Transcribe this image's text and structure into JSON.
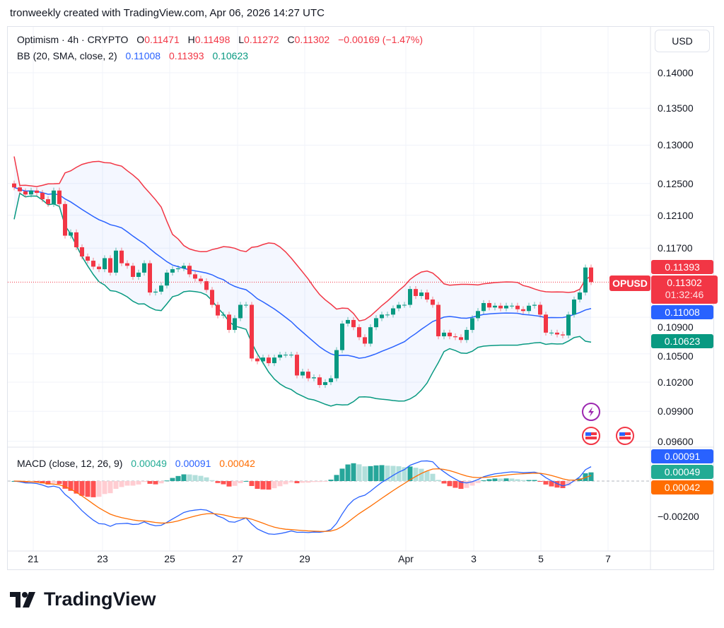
{
  "credit": "tronweekly created with TradingView.com, Apr 06, 2026 14:27 UTC",
  "legend": {
    "symbol": "Optimism · 4h · CRYPTO",
    "o_label": "O",
    "o": "0.11471",
    "h_label": "H",
    "h": "0.11498",
    "l_label": "L",
    "l": "0.11272",
    "c_label": "C",
    "c": "0.11302",
    "change": "−0.00169 (−1.47%)",
    "bb_label": "BB (20, SMA, close, 2)",
    "bb_basis": "0.11008",
    "bb_upper": "0.11393",
    "bb_lower": "0.10623",
    "macd_label": "MACD (close, 12, 26, 9)",
    "macd_hist": "0.00049",
    "macd_line": "0.00091",
    "macd_signal": "0.00042"
  },
  "currency": "USD",
  "badges": {
    "upper": "0.11393",
    "symbol": "OPUSD",
    "price": "0.11302",
    "countdown": "01:32:46",
    "basis": "0.11008",
    "lower": "0.10623",
    "macd_line": "0.00091",
    "macd_hist": "0.00049",
    "macd_signal": "0.00042"
  },
  "logo": "TradingView",
  "colors": {
    "up": "#089981",
    "down": "#f23645",
    "bb_basis": "#2962ff",
    "bb_upper": "#f23645",
    "bb_lower": "#089981",
    "macd": "#2962ff",
    "signal": "#ff6d00"
  },
  "events": [
    {
      "icon": "lightning-icon"
    },
    {
      "icon": "us-flag-icon"
    },
    {
      "icon": "us-flag-icon"
    }
  ],
  "chart_data": {
    "type": "candlestick",
    "scale": "log",
    "interval": "4h",
    "first_open": 0.125,
    "close": [
      0.1245,
      0.124,
      0.1236,
      0.1241,
      0.1238,
      0.123,
      0.1224,
      0.1241,
      0.1224,
      0.1185,
      0.1189,
      0.1171,
      0.116,
      0.1155,
      0.1148,
      0.1145,
      0.1158,
      0.1141,
      0.1167,
      0.1152,
      0.1149,
      0.1136,
      0.1141,
      0.1152,
      0.1118,
      0.1119,
      0.1126,
      0.1141,
      0.1145,
      0.1146,
      0.1149,
      0.1139,
      0.1134,
      0.1131,
      0.1121,
      0.1104,
      0.1092,
      0.1093,
      0.1076,
      0.1089,
      0.1104,
      0.1104,
      0.1045,
      0.1042,
      0.1046,
      0.104,
      0.1046,
      0.1049,
      0.1049,
      0.1049,
      0.1027,
      0.1031,
      0.1024,
      0.1025,
      0.1017,
      0.102,
      0.1024,
      0.1054,
      0.1083,
      0.1087,
      0.1079,
      0.1068,
      0.1061,
      0.1079,
      0.1089,
      0.1093,
      0.1093,
      0.11,
      0.1104,
      0.1104,
      0.1122,
      0.1114,
      0.1118,
      0.111,
      0.1104,
      0.1069,
      0.1073,
      0.1069,
      0.1068,
      0.1065,
      0.1076,
      0.1089,
      0.1097,
      0.1106,
      0.1101,
      0.1103,
      0.11,
      0.1103,
      0.1103,
      0.1099,
      0.1097,
      0.1103,
      0.1104,
      0.1093,
      0.1073,
      0.1073,
      0.1071,
      0.107,
      0.1093,
      0.111,
      0.1118,
      0.1147,
      0.113
    ],
    "price_ticks": [
      "0.14000",
      "0.13500",
      "0.13000",
      "0.12500",
      "0.12100",
      "0.11700",
      "0.10900",
      "0.10500",
      "0.10200",
      "0.09900",
      "0.09600"
    ],
    "macd_ticks": [
      "−0.00200"
    ],
    "x_ticks": [
      "21",
      "23",
      "25",
      "27",
      "29",
      "Apr",
      "3",
      "5",
      "7"
    ],
    "ylim": [
      0.096,
      0.14
    ],
    "indicators": [
      "BB (20, SMA, close, 2)",
      "MACD (close, 12, 26, 9)"
    ],
    "grid": true
  }
}
